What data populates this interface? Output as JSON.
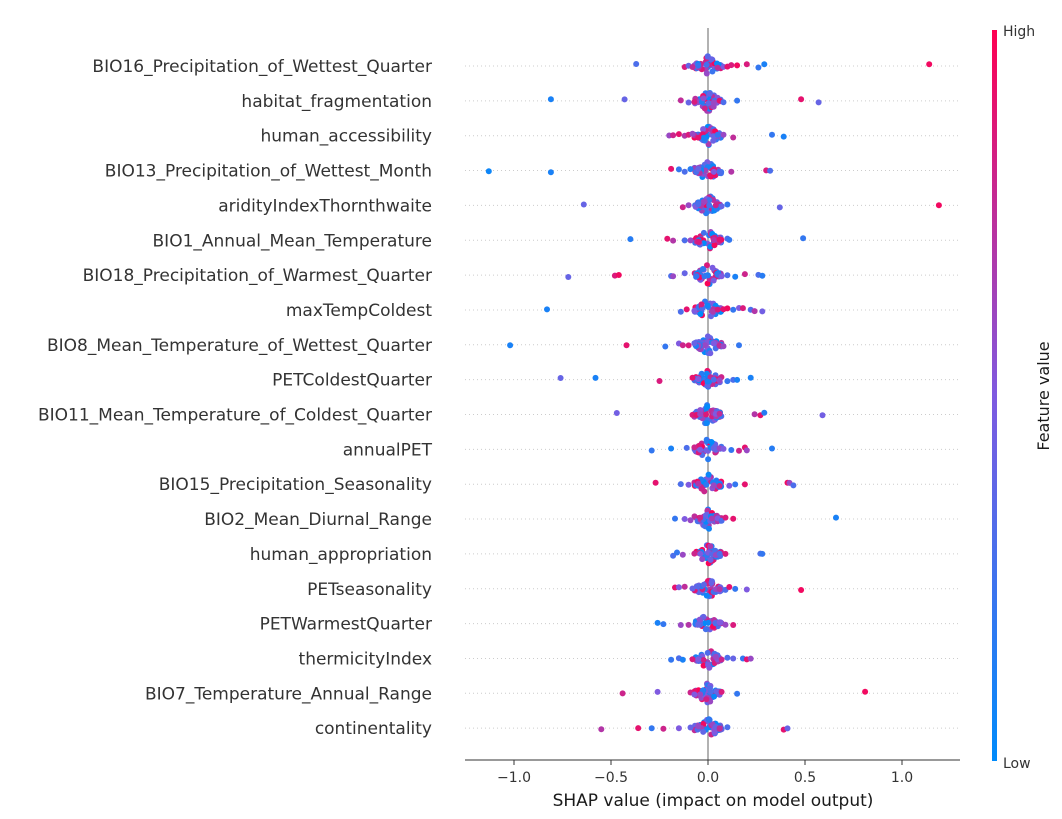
{
  "chart_data": {
    "type": "scatter",
    "subtype": "shap-beeswarm",
    "title": "",
    "xlabel": "SHAP value (impact on model output)",
    "ylabel": "",
    "xlim": [
      -1.25,
      1.3
    ],
    "xticks": [
      -1.0,
      -0.5,
      0.0,
      0.5,
      1.0
    ],
    "xtick_labels": [
      "−1.0",
      "−0.5",
      "0.0",
      "0.5",
      "1.0"
    ],
    "colorbar": {
      "label": "Feature value",
      "high_label": "High",
      "low_label": "Low",
      "low_color": "#008bfb",
      "high_color": "#ff0052"
    },
    "grid": false,
    "features": [
      {
        "name": "BIO16_Precipitation_of_Wettest_Quarter",
        "points": [
          [
            -0.37,
            0.3
          ],
          [
            -0.12,
            0.85
          ],
          [
            -0.1,
            0.4
          ],
          [
            -0.08,
            0.75
          ],
          [
            -0.05,
            0.2
          ],
          [
            0.05,
            0.75
          ],
          [
            0.08,
            0.5
          ],
          [
            0.1,
            0.9
          ],
          [
            0.12,
            0.85
          ],
          [
            0.15,
            0.95
          ],
          [
            0.2,
            0.85
          ],
          [
            0.26,
            0.2
          ],
          [
            0.29,
            0.1
          ],
          [
            1.14,
            0.95
          ]
        ]
      },
      {
        "name": "habitat_fragmentation",
        "points": [
          [
            -0.81,
            0.1
          ],
          [
            -0.43,
            0.4
          ],
          [
            -0.14,
            0.75
          ],
          [
            -0.1,
            0.4
          ],
          [
            -0.07,
            0.85
          ],
          [
            0.03,
            0.6
          ],
          [
            0.06,
            0.9
          ],
          [
            0.08,
            0.3
          ],
          [
            0.15,
            0.2
          ],
          [
            0.48,
            0.9
          ],
          [
            0.57,
            0.4
          ]
        ]
      },
      {
        "name": "human_accessibility",
        "points": [
          [
            -0.2,
            0.6
          ],
          [
            -0.18,
            0.8
          ],
          [
            -0.15,
            0.9
          ],
          [
            -0.12,
            0.7
          ],
          [
            -0.1,
            0.85
          ],
          [
            -0.08,
            0.6
          ],
          [
            -0.05,
            0.9
          ],
          [
            0.03,
            0.4
          ],
          [
            0.05,
            0.2
          ],
          [
            0.08,
            0.6
          ],
          [
            0.13,
            0.75
          ],
          [
            0.33,
            0.2
          ],
          [
            0.39,
            0.1
          ]
        ]
      },
      {
        "name": "BIO13_Precipitation_of_Wettest_Month",
        "points": [
          [
            -1.13,
            0.05
          ],
          [
            -0.81,
            0.1
          ],
          [
            -0.19,
            0.9
          ],
          [
            -0.15,
            0.2
          ],
          [
            -0.12,
            0.3
          ],
          [
            -0.09,
            0.15
          ],
          [
            -0.05,
            0.4
          ],
          [
            0.03,
            0.5
          ],
          [
            0.06,
            0.3
          ],
          [
            0.12,
            0.7
          ],
          [
            0.3,
            0.85
          ],
          [
            0.32,
            0.3
          ]
        ]
      },
      {
        "name": "aridityIndexThornthwaite",
        "points": [
          [
            -0.64,
            0.4
          ],
          [
            -0.13,
            0.8
          ],
          [
            -0.1,
            0.6
          ],
          [
            -0.05,
            0.3
          ],
          [
            0.04,
            0.8
          ],
          [
            0.07,
            0.4
          ],
          [
            0.1,
            0.2
          ],
          [
            0.37,
            0.4
          ],
          [
            1.19,
            0.95
          ]
        ]
      },
      {
        "name": "BIO1_Annual_Mean_Temperature",
        "points": [
          [
            -0.4,
            0.15
          ],
          [
            -0.21,
            0.9
          ],
          [
            -0.18,
            0.7
          ],
          [
            -0.12,
            0.3
          ],
          [
            -0.09,
            0.6
          ],
          [
            -0.05,
            0.85
          ],
          [
            0.03,
            0.7
          ],
          [
            0.06,
            0.9
          ],
          [
            0.1,
            0.3
          ],
          [
            0.11,
            0.2
          ],
          [
            0.49,
            0.2
          ]
        ]
      },
      {
        "name": "BIO18_Precipitation_of_Warmest_Quarter",
        "points": [
          [
            -0.72,
            0.4
          ],
          [
            -0.48,
            0.85
          ],
          [
            -0.46,
            0.95
          ],
          [
            -0.19,
            0.3
          ],
          [
            -0.18,
            0.6
          ],
          [
            -0.12,
            0.4
          ],
          [
            -0.06,
            0.2
          ],
          [
            0.05,
            0.2
          ],
          [
            0.07,
            0.5
          ],
          [
            0.1,
            0.3
          ],
          [
            0.14,
            0.1
          ],
          [
            0.19,
            0.8
          ],
          [
            0.26,
            0.3
          ],
          [
            0.28,
            0.15
          ]
        ]
      },
      {
        "name": "maxTempColdest",
        "points": [
          [
            -0.83,
            0.1
          ],
          [
            -0.14,
            0.3
          ],
          [
            -0.11,
            0.9
          ],
          [
            -0.07,
            0.5
          ],
          [
            0.05,
            0.85
          ],
          [
            0.08,
            0.9
          ],
          [
            0.1,
            0.95
          ],
          [
            0.13,
            0.2
          ],
          [
            0.16,
            0.5
          ],
          [
            0.18,
            0.85
          ],
          [
            0.22,
            0.3
          ],
          [
            0.24,
            0.7
          ],
          [
            0.28,
            0.45
          ]
        ]
      },
      {
        "name": "BIO8_Mean_Temperature_of_Wettest_Quarter",
        "points": [
          [
            -1.02,
            0.1
          ],
          [
            -0.42,
            0.9
          ],
          [
            -0.22,
            0.2
          ],
          [
            -0.15,
            0.5
          ],
          [
            -0.13,
            0.8
          ],
          [
            -0.1,
            0.85
          ],
          [
            -0.07,
            0.4
          ],
          [
            0.03,
            0.5
          ],
          [
            0.06,
            0.75
          ],
          [
            0.08,
            0.6
          ],
          [
            0.16,
            0.2
          ]
        ]
      },
      {
        "name": "PETColdestQuarter",
        "points": [
          [
            -0.76,
            0.4
          ],
          [
            -0.58,
            0.1
          ],
          [
            -0.25,
            0.85
          ],
          [
            -0.08,
            0.9
          ],
          [
            -0.05,
            0.5
          ],
          [
            0.03,
            0.3
          ],
          [
            0.06,
            0.6
          ],
          [
            0.1,
            0.2
          ],
          [
            0.13,
            0.3
          ],
          [
            0.15,
            0.1
          ],
          [
            0.22,
            0.1
          ]
        ]
      },
      {
        "name": "BIO11_Mean_Temperature_of_Coldest_Quarter",
        "points": [
          [
            -0.47,
            0.45
          ],
          [
            -0.08,
            0.85
          ],
          [
            -0.06,
            0.9
          ],
          [
            -0.04,
            0.6
          ],
          [
            0.04,
            0.5
          ],
          [
            0.06,
            0.75
          ],
          [
            0.24,
            0.7
          ],
          [
            0.27,
            0.9
          ],
          [
            0.29,
            0.15
          ],
          [
            0.59,
            0.45
          ]
        ]
      },
      {
        "name": "annualPET",
        "points": [
          [
            -0.29,
            0.2
          ],
          [
            -0.19,
            0.1
          ],
          [
            -0.11,
            0.3
          ],
          [
            -0.07,
            0.8
          ],
          [
            -0.04,
            0.5
          ],
          [
            0.04,
            0.4
          ],
          [
            0.06,
            0.6
          ],
          [
            0.08,
            0.5
          ],
          [
            0.12,
            0.2
          ],
          [
            0.16,
            0.8
          ],
          [
            0.19,
            0.9
          ],
          [
            0.2,
            0.6
          ],
          [
            0.33,
            0.15
          ]
        ]
      },
      {
        "name": "BIO15_Precipitation_Seasonality",
        "points": [
          [
            -0.27,
            0.9
          ],
          [
            -0.14,
            0.3
          ],
          [
            -0.1,
            0.5
          ],
          [
            -0.05,
            0.7
          ],
          [
            0.03,
            0.6
          ],
          [
            0.06,
            0.8
          ],
          [
            0.11,
            0.5
          ],
          [
            0.14,
            0.2
          ],
          [
            0.19,
            0.9
          ],
          [
            0.41,
            0.95
          ],
          [
            0.42,
            0.6
          ],
          [
            0.44,
            0.3
          ]
        ]
      },
      {
        "name": "BIO2_Mean_Diurnal_Range",
        "points": [
          [
            -0.17,
            0.2
          ],
          [
            -0.12,
            0.5
          ],
          [
            -0.09,
            0.6
          ],
          [
            -0.04,
            0.8
          ],
          [
            0.05,
            0.5
          ],
          [
            0.07,
            0.3
          ],
          [
            0.09,
            0.85
          ],
          [
            0.13,
            0.9
          ],
          [
            0.66,
            0.1
          ]
        ]
      },
      {
        "name": "human_appropriation",
        "points": [
          [
            -0.18,
            0.3
          ],
          [
            -0.16,
            0.2
          ],
          [
            -0.13,
            0.6
          ],
          [
            -0.07,
            0.8
          ],
          [
            -0.04,
            0.5
          ],
          [
            0.04,
            0.6
          ],
          [
            0.06,
            0.3
          ],
          [
            0.09,
            0.85
          ],
          [
            0.27,
            0.3
          ],
          [
            0.28,
            0.2
          ]
        ]
      },
      {
        "name": "PETseasonality",
        "points": [
          [
            -0.17,
            0.9
          ],
          [
            -0.15,
            0.5
          ],
          [
            -0.12,
            0.75
          ],
          [
            -0.08,
            0.4
          ],
          [
            0.04,
            0.6
          ],
          [
            0.06,
            0.7
          ],
          [
            0.09,
            0.3
          ],
          [
            0.11,
            0.9
          ],
          [
            0.14,
            0.2
          ],
          [
            0.2,
            0.5
          ],
          [
            0.48,
            0.95
          ]
        ]
      },
      {
        "name": "PETWarmestQuarter",
        "points": [
          [
            -0.26,
            0.1
          ],
          [
            -0.23,
            0.2
          ],
          [
            -0.14,
            0.6
          ],
          [
            -0.1,
            0.7
          ],
          [
            -0.05,
            0.4
          ],
          [
            0.04,
            0.3
          ],
          [
            0.06,
            0.5
          ],
          [
            0.09,
            0.6
          ],
          [
            0.13,
            0.85
          ]
        ]
      },
      {
        "name": "thermicityIndex",
        "points": [
          [
            -0.19,
            0.2
          ],
          [
            -0.15,
            0.3
          ],
          [
            -0.13,
            0.1
          ],
          [
            -0.08,
            0.85
          ],
          [
            -0.05,
            0.5
          ],
          [
            0.04,
            0.6
          ],
          [
            0.07,
            0.8
          ],
          [
            0.1,
            0.3
          ],
          [
            0.13,
            0.4
          ],
          [
            0.18,
            0.2
          ],
          [
            0.2,
            0.9
          ],
          [
            0.22,
            0.6
          ]
        ]
      },
      {
        "name": "BIO7_Temperature_Annual_Range",
        "points": [
          [
            -0.44,
            0.8
          ],
          [
            -0.26,
            0.5
          ],
          [
            -0.09,
            0.8
          ],
          [
            -0.07,
            0.5
          ],
          [
            -0.04,
            0.6
          ],
          [
            0.05,
            0.4
          ],
          [
            0.07,
            0.85
          ],
          [
            0.15,
            0.2
          ],
          [
            0.81,
            0.95
          ]
        ]
      },
      {
        "name": "continentality",
        "points": [
          [
            -0.55,
            0.7
          ],
          [
            -0.36,
            0.9
          ],
          [
            -0.29,
            0.2
          ],
          [
            -0.23,
            0.8
          ],
          [
            -0.15,
            0.5
          ],
          [
            -0.09,
            0.4
          ],
          [
            -0.05,
            0.6
          ],
          [
            0.04,
            0.4
          ],
          [
            0.06,
            0.75
          ],
          [
            0.1,
            0.3
          ],
          [
            0.39,
            0.9
          ],
          [
            0.41,
            0.4
          ]
        ]
      }
    ]
  }
}
